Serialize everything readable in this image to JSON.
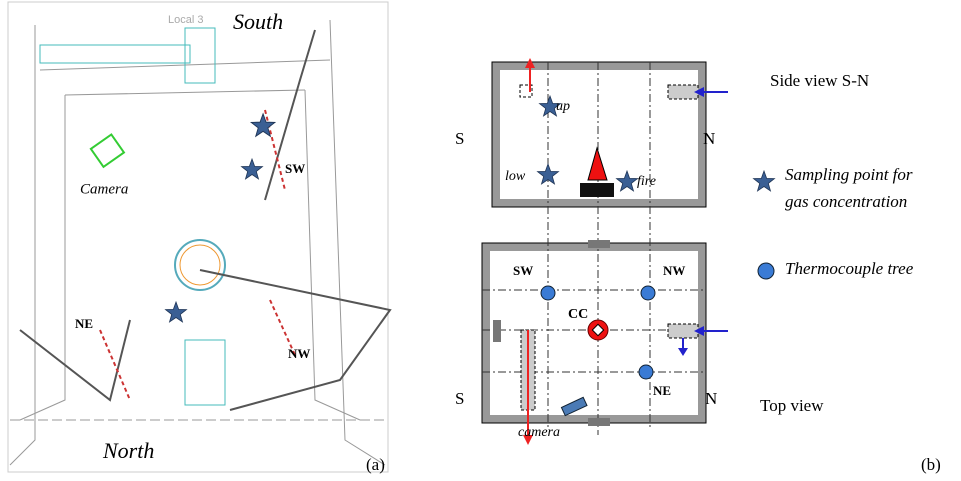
{
  "panel_a": {
    "labels": {
      "local": "Local 3",
      "south": "South",
      "camera": "Camera",
      "sw": "SW",
      "ne": "NE",
      "nw": "NW",
      "north": "North"
    },
    "caption": "(a)"
  },
  "panel_b": {
    "side_view": {
      "s": "S",
      "n": "N",
      "up": "up",
      "low": "low",
      "fire": "fire",
      "title": "Side view S-N"
    },
    "top_view": {
      "sw": "SW",
      "nw": "NW",
      "cc": "CC",
      "ne": "NE",
      "s": "S",
      "n": "N",
      "camera": "camera",
      "title": "Top view"
    },
    "legend": {
      "sampling": [
        "Sampling point for",
        "gas concentration"
      ],
      "thermocouple": "Thermocouple tree"
    },
    "caption": "(b)"
  }
}
